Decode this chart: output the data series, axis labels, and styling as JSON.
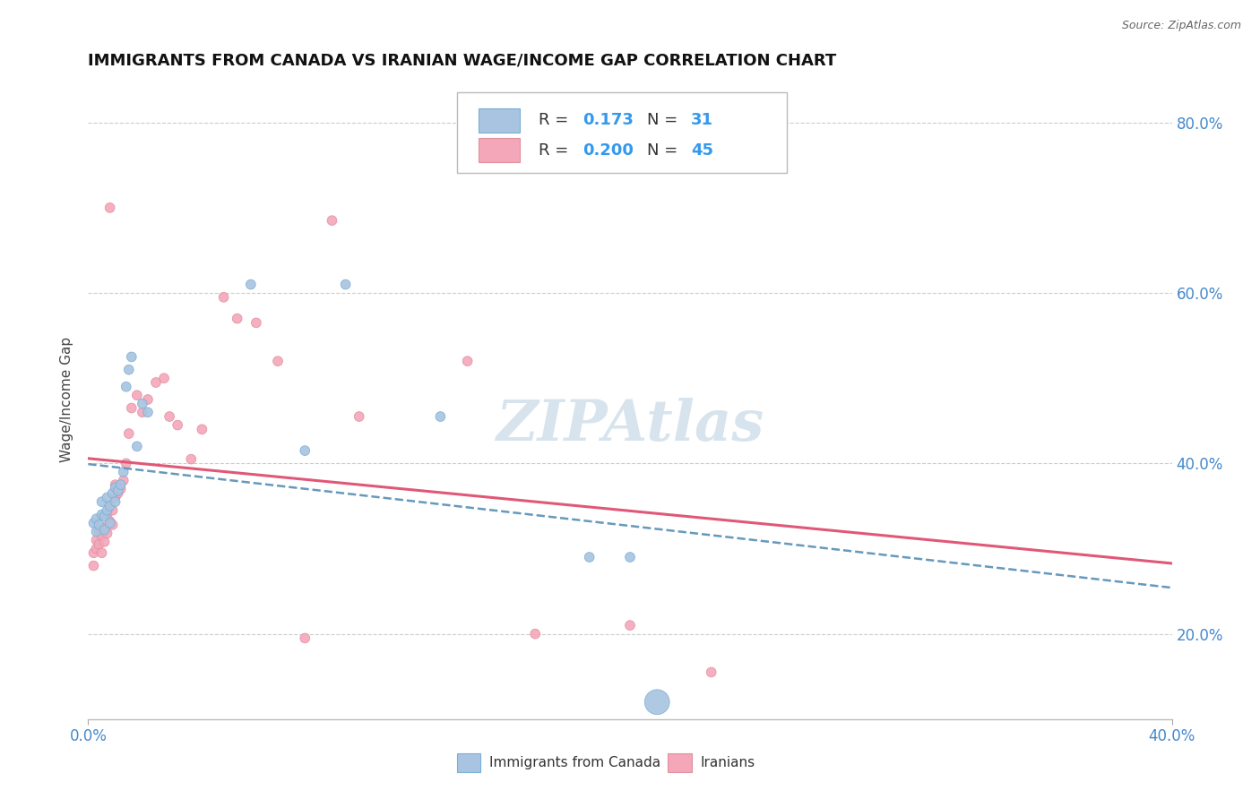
{
  "title": "IMMIGRANTS FROM CANADA VS IRANIAN WAGE/INCOME GAP CORRELATION CHART",
  "source": "Source: ZipAtlas.com",
  "ylabel_label": "Wage/Income Gap",
  "x_min": 0.0,
  "x_max": 0.4,
  "y_min": 0.1,
  "y_max": 0.85,
  "x_ticks": [
    0.0,
    0.4
  ],
  "x_tick_labels": [
    "0.0%",
    "40.0%"
  ],
  "y_ticks": [
    0.2,
    0.4,
    0.6,
    0.8
  ],
  "y_tick_labels": [
    "20.0%",
    "40.0%",
    "60.0%",
    "80.0%"
  ],
  "color_canada": "#a8c4e0",
  "color_iran": "#f4a7b9",
  "trendline_canada": "#8888aa",
  "trendline_iran": "#e05878",
  "watermark": "ZIPAtlas",
  "canada_points": [
    [
      0.002,
      0.33
    ],
    [
      0.003,
      0.335
    ],
    [
      0.003,
      0.32
    ],
    [
      0.004,
      0.328
    ],
    [
      0.005,
      0.34
    ],
    [
      0.005,
      0.355
    ],
    [
      0.006,
      0.322
    ],
    [
      0.006,
      0.338
    ],
    [
      0.007,
      0.345
    ],
    [
      0.007,
      0.36
    ],
    [
      0.008,
      0.35
    ],
    [
      0.008,
      0.33
    ],
    [
      0.009,
      0.365
    ],
    [
      0.01,
      0.355
    ],
    [
      0.01,
      0.372
    ],
    [
      0.011,
      0.368
    ],
    [
      0.012,
      0.375
    ],
    [
      0.013,
      0.39
    ],
    [
      0.014,
      0.49
    ],
    [
      0.015,
      0.51
    ],
    [
      0.016,
      0.525
    ],
    [
      0.018,
      0.42
    ],
    [
      0.02,
      0.47
    ],
    [
      0.022,
      0.46
    ],
    [
      0.06,
      0.61
    ],
    [
      0.08,
      0.415
    ],
    [
      0.095,
      0.61
    ],
    [
      0.13,
      0.455
    ],
    [
      0.185,
      0.29
    ],
    [
      0.2,
      0.29
    ],
    [
      0.21,
      0.12
    ]
  ],
  "canada_sizes": [
    60,
    60,
    60,
    60,
    60,
    60,
    60,
    60,
    60,
    60,
    60,
    60,
    60,
    60,
    60,
    60,
    60,
    60,
    60,
    60,
    60,
    60,
    60,
    60,
    60,
    60,
    60,
    60,
    60,
    60,
    400
  ],
  "iran_points": [
    [
      0.002,
      0.295
    ],
    [
      0.002,
      0.28
    ],
    [
      0.003,
      0.3
    ],
    [
      0.003,
      0.31
    ],
    [
      0.004,
      0.305
    ],
    [
      0.004,
      0.32
    ],
    [
      0.005,
      0.295
    ],
    [
      0.005,
      0.315
    ],
    [
      0.006,
      0.308
    ],
    [
      0.006,
      0.325
    ],
    [
      0.007,
      0.318
    ],
    [
      0.007,
      0.34
    ],
    [
      0.008,
      0.332
    ],
    [
      0.008,
      0.35
    ],
    [
      0.009,
      0.328
    ],
    [
      0.009,
      0.345
    ],
    [
      0.01,
      0.36
    ],
    [
      0.01,
      0.375
    ],
    [
      0.011,
      0.365
    ],
    [
      0.012,
      0.37
    ],
    [
      0.013,
      0.38
    ],
    [
      0.014,
      0.4
    ],
    [
      0.015,
      0.435
    ],
    [
      0.016,
      0.465
    ],
    [
      0.018,
      0.48
    ],
    [
      0.02,
      0.46
    ],
    [
      0.022,
      0.475
    ],
    [
      0.025,
      0.495
    ],
    [
      0.028,
      0.5
    ],
    [
      0.03,
      0.455
    ],
    [
      0.033,
      0.445
    ],
    [
      0.038,
      0.405
    ],
    [
      0.042,
      0.44
    ],
    [
      0.05,
      0.595
    ],
    [
      0.055,
      0.57
    ],
    [
      0.062,
      0.565
    ],
    [
      0.07,
      0.52
    ],
    [
      0.08,
      0.195
    ],
    [
      0.09,
      0.685
    ],
    [
      0.1,
      0.455
    ],
    [
      0.14,
      0.52
    ],
    [
      0.165,
      0.2
    ],
    [
      0.2,
      0.21
    ],
    [
      0.23,
      0.155
    ],
    [
      0.008,
      0.7
    ]
  ],
  "iran_sizes": [
    60,
    60,
    60,
    60,
    60,
    60,
    60,
    60,
    60,
    60,
    60,
    60,
    60,
    60,
    60,
    60,
    60,
    60,
    60,
    60,
    60,
    60,
    60,
    60,
    60,
    60,
    60,
    60,
    60,
    60,
    60,
    60,
    60,
    60,
    60,
    60,
    60,
    60,
    60,
    60,
    60,
    60,
    60,
    60,
    60
  ]
}
